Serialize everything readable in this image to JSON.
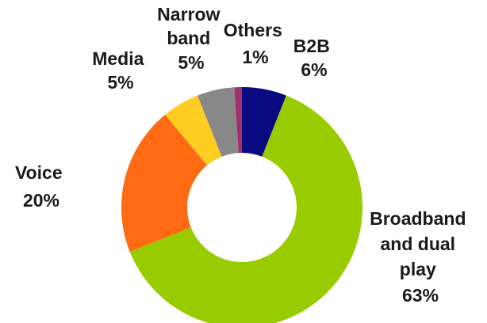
{
  "chart_data": {
    "type": "pie",
    "title": "",
    "categories": [
      "B2B",
      "Broadband and dual play",
      "Voice",
      "Media",
      "Narrow band",
      "Others"
    ],
    "values": [
      6,
      63,
      20,
      5,
      5,
      1
    ],
    "colors": [
      "#0a0a80",
      "#99cc00",
      "#ff6a13",
      "#ffcc22",
      "#888888",
      "#a0306a"
    ],
    "donut": true,
    "legend": "none",
    "labels": [
      {
        "lines": [
          "B2B",
          "6%"
        ]
      },
      {
        "lines": [
          "Broadband",
          "and dual",
          "play",
          "63%"
        ]
      },
      {
        "lines": [
          "Voice",
          "20%"
        ]
      },
      {
        "lines": [
          "Media",
          "5%"
        ]
      },
      {
        "lines": [
          "Narrow",
          "band",
          "5%"
        ]
      },
      {
        "lines": [
          "Others",
          "1%"
        ]
      }
    ]
  }
}
